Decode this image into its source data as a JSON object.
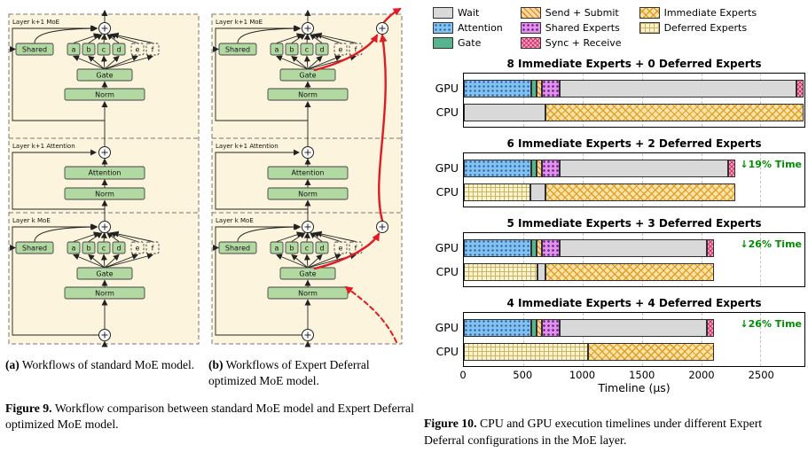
{
  "figure9": {
    "diagram": {
      "layers": [
        "Layer k+1 MoE",
        "Layer k+1 Attention",
        "Layer k MoE"
      ],
      "boxes": {
        "shared": "Shared",
        "experts": [
          "a",
          "b",
          "c",
          "d",
          "e",
          "f"
        ],
        "gate": "Gate",
        "norm": "Norm",
        "attention": "Attention"
      },
      "panel_bg": "#fcf4dc",
      "box_green": "#b3d9a3",
      "deferral_red": "#e01b24"
    },
    "panel_a": {
      "caption_tag": "(a)",
      "caption_text": "Workflows of standard MoE model."
    },
    "panel_b": {
      "caption_tag": "(b)",
      "caption_text": "Workflows of Expert Deferral optimized MoE model."
    },
    "caption_tag": "Figure 9.",
    "caption_text": "Workflow comparison between standard MoE model and Expert Deferral optimized MoE model."
  },
  "figure10": {
    "caption_tag": "Figure 10.",
    "caption_text": "CPU and GPU execution timelines under different Expert Deferral configurations in the MoE layer."
  },
  "chart_data": {
    "type": "bar",
    "orientation": "horizontal-stacked-timeline",
    "xlabel": "Timeline (μs)",
    "xlim": [
      0,
      2870
    ],
    "xticks": [
      0,
      500,
      1000,
      1500,
      2000,
      2500
    ],
    "grid": "dashed-vertical",
    "legend_position": "top",
    "annotation_color": "#008f00",
    "styles": {
      "Wait": {
        "color": "#d9d9d9",
        "pattern": "solid"
      },
      "Attention": {
        "color": "#85c1ed",
        "pattern": "dots",
        "pattern_color": "#1458a8"
      },
      "Gate": {
        "color": "#56b58e",
        "pattern": "solid"
      },
      "Send + Submit": {
        "color": "#ffd9a0",
        "pattern": "diag",
        "pattern_color": "#e07f1f"
      },
      "Shared Experts": {
        "color": "#de93e3",
        "pattern": "stars",
        "pattern_color": "#7b1fa2"
      },
      "Sync + Receive": {
        "color": "#f7a8c5",
        "pattern": "cross",
        "pattern_color": "#d6336c"
      },
      "Immediate Experts": {
        "color": "#ffe3a6",
        "pattern": "crosshatch",
        "pattern_color": "#dd9e27"
      },
      "Deferred Experts": {
        "color": "#fcf3cf",
        "pattern": "grid",
        "pattern_color": "#cdb462"
      }
    },
    "legend_columns": [
      [
        "Wait",
        "Attention",
        "Gate"
      ],
      [
        "Send + Submit",
        "Shared Experts",
        "Sync + Receive"
      ],
      [
        "Immediate Experts",
        "Deferred Experts"
      ]
    ],
    "subplots": [
      {
        "title": "8 Immediate Experts + 0 Deferred Experts",
        "annotation": null,
        "rows": [
          {
            "label": "GPU",
            "segments": [
              [
                "Attention",
                0,
                570
              ],
              [
                "Gate",
                570,
                610
              ],
              [
                "Send + Submit",
                610,
                655
              ],
              [
                "Shared Experts",
                655,
                810
              ],
              [
                "Wait",
                810,
                2800
              ],
              [
                "Sync + Receive",
                2800,
                2860
              ]
            ]
          },
          {
            "label": "CPU",
            "segments": [
              [
                "Wait",
                0,
                690
              ],
              [
                "Immediate Experts",
                690,
                2860
              ]
            ]
          }
        ]
      },
      {
        "title": "6 Immediate Experts + 2 Deferred Experts",
        "annotation": "↓19% Time",
        "rows": [
          {
            "label": "GPU",
            "segments": [
              [
                "Attention",
                0,
                570
              ],
              [
                "Gate",
                570,
                610
              ],
              [
                "Send + Submit",
                610,
                655
              ],
              [
                "Shared Experts",
                655,
                810
              ],
              [
                "Wait",
                810,
                2230
              ],
              [
                "Sync + Receive",
                2230,
                2290
              ]
            ]
          },
          {
            "label": "CPU",
            "segments": [
              [
                "Deferred Experts",
                0,
                560
              ],
              [
                "Wait",
                560,
                690
              ],
              [
                "Immediate Experts",
                690,
                2290
              ]
            ]
          }
        ]
      },
      {
        "title": "5 Immediate Experts + 3 Deferred Experts",
        "annotation": "↓26% Time",
        "rows": [
          {
            "label": "GPU",
            "segments": [
              [
                "Attention",
                0,
                570
              ],
              [
                "Gate",
                570,
                610
              ],
              [
                "Send + Submit",
                610,
                655
              ],
              [
                "Shared Experts",
                655,
                810
              ],
              [
                "Wait",
                810,
                2050
              ],
              [
                "Sync + Receive",
                2050,
                2110
              ]
            ]
          },
          {
            "label": "CPU",
            "segments": [
              [
                "Deferred Experts",
                0,
                620
              ],
              [
                "Wait",
                620,
                690
              ],
              [
                "Immediate Experts",
                690,
                2110
              ]
            ]
          }
        ]
      },
      {
        "title": "4 Immediate Experts + 4 Deferred Experts",
        "annotation": "↓26% Time",
        "rows": [
          {
            "label": "GPU",
            "segments": [
              [
                "Attention",
                0,
                570
              ],
              [
                "Gate",
                570,
                610
              ],
              [
                "Send + Submit",
                610,
                655
              ],
              [
                "Shared Experts",
                655,
                810
              ],
              [
                "Wait",
                810,
                2050
              ],
              [
                "Sync + Receive",
                2050,
                2110
              ]
            ]
          },
          {
            "label": "CPU",
            "segments": [
              [
                "Deferred Experts",
                0,
                1050
              ],
              [
                "Immediate Experts",
                1050,
                2110
              ]
            ]
          }
        ]
      }
    ]
  }
}
